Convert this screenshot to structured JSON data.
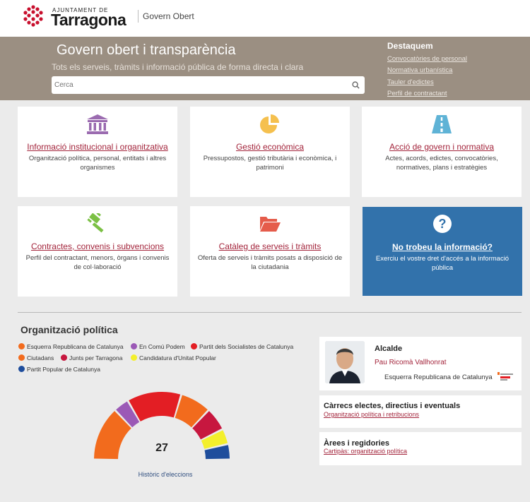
{
  "header": {
    "logo_small": "AJUNTAMENT DE",
    "logo_big": "Tarragona",
    "portal_name": "Govern Obert"
  },
  "banner": {
    "title": "Govern obert i transparència",
    "subtitle": "Tots els serveis, tràmits i informació pública de forma directa i clara",
    "search_placeholder": "Cerca",
    "featured_title": "Destaquem",
    "featured_links": [
      "Convocatòries de personal",
      "Normativa urbanística",
      "Tauler d'edictes",
      "Perfil de contractant"
    ]
  },
  "cards": [
    {
      "icon": "institution-icon",
      "title": "Informació institucional i organitzativa",
      "desc": "Organització política, personal, entitats i altres organismes",
      "color": "#9b6bb0"
    },
    {
      "icon": "pie-chart-icon",
      "title": "Gestió econòmica",
      "desc": "Pressupostos, gestió tributària i econòmica, i patrimoni",
      "color": "#f5c04e"
    },
    {
      "icon": "road-icon",
      "title": "Acció de govern i normativa",
      "desc": "Actes, acords, edictes, convocatòries, normatives, plans i estratègies",
      "color": "#5fb3d6"
    },
    {
      "icon": "gavel-icon",
      "title": "Contractes, convenis i subvencions",
      "desc": "Perfil del contractant, menors, òrgans i convenis de col·laboració",
      "color": "#7bc044"
    },
    {
      "icon": "folder-open-icon",
      "title": "Catàleg de serveis i tràmits",
      "desc": "Oferta de serveis i tràmits posats a disposició de la ciutadania",
      "color": "#e55c4b"
    },
    {
      "icon": "question-icon",
      "title": "No trobeu la informació?",
      "desc": "Exerciu el vostre dret d'accés a la informació pública",
      "color": "#ffffff"
    }
  ],
  "org": {
    "title": "Organització política",
    "total_seats": "27",
    "history_link": "Històric d'eleccions",
    "parties": [
      {
        "name": "Esquerra Republicana de Catalunya",
        "color": "#f26b1d"
      },
      {
        "name": "En Comú Podem",
        "color": "#9b59b6"
      },
      {
        "name": "Partit dels Socialistes de Catalunya",
        "color": "#e31e24"
      },
      {
        "name": "Ciutadans",
        "color": "#f26b1d"
      },
      {
        "name": "Junts per Tarragona",
        "color": "#c7173f"
      },
      {
        "name": "Candidatura d'Unitat Popular",
        "color": "#f3ef2c"
      },
      {
        "name": "Partit Popular de Catalunya",
        "color": "#1e4d9c"
      }
    ]
  },
  "chart_data": {
    "type": "pie",
    "title": "",
    "center_label": "27",
    "series": [
      {
        "name": "Esquerra Republicana de Catalunya",
        "value": 7,
        "color": "#f26b1d"
      },
      {
        "name": "En Comú Podem",
        "value": 2,
        "color": "#9b59b6"
      },
      {
        "name": "Partit dels Socialistes de Catalunya",
        "value": 7,
        "color": "#e31e24"
      },
      {
        "name": "Ciutadans",
        "value": 4,
        "color": "#f26b1d"
      },
      {
        "name": "Junts per Tarragona",
        "value": 3,
        "color": "#c7173f"
      },
      {
        "name": "Candidatura d'Unitat Popular",
        "value": 2,
        "color": "#f3ef2c"
      },
      {
        "name": "Partit Popular de Catalunya",
        "value": 2,
        "color": "#1e4d9c"
      }
    ]
  },
  "mayor": {
    "role": "Alcalde",
    "name": "Pau Ricomà Vallhonrat",
    "party": "Esquerra Republicana de Catalunya"
  },
  "panels": [
    {
      "title": "Càrrecs electes, directius i eventuals",
      "link": "Organització política i retribucions"
    },
    {
      "title": "Àrees i regidories",
      "link": "Cartipàs: organització política"
    }
  ]
}
